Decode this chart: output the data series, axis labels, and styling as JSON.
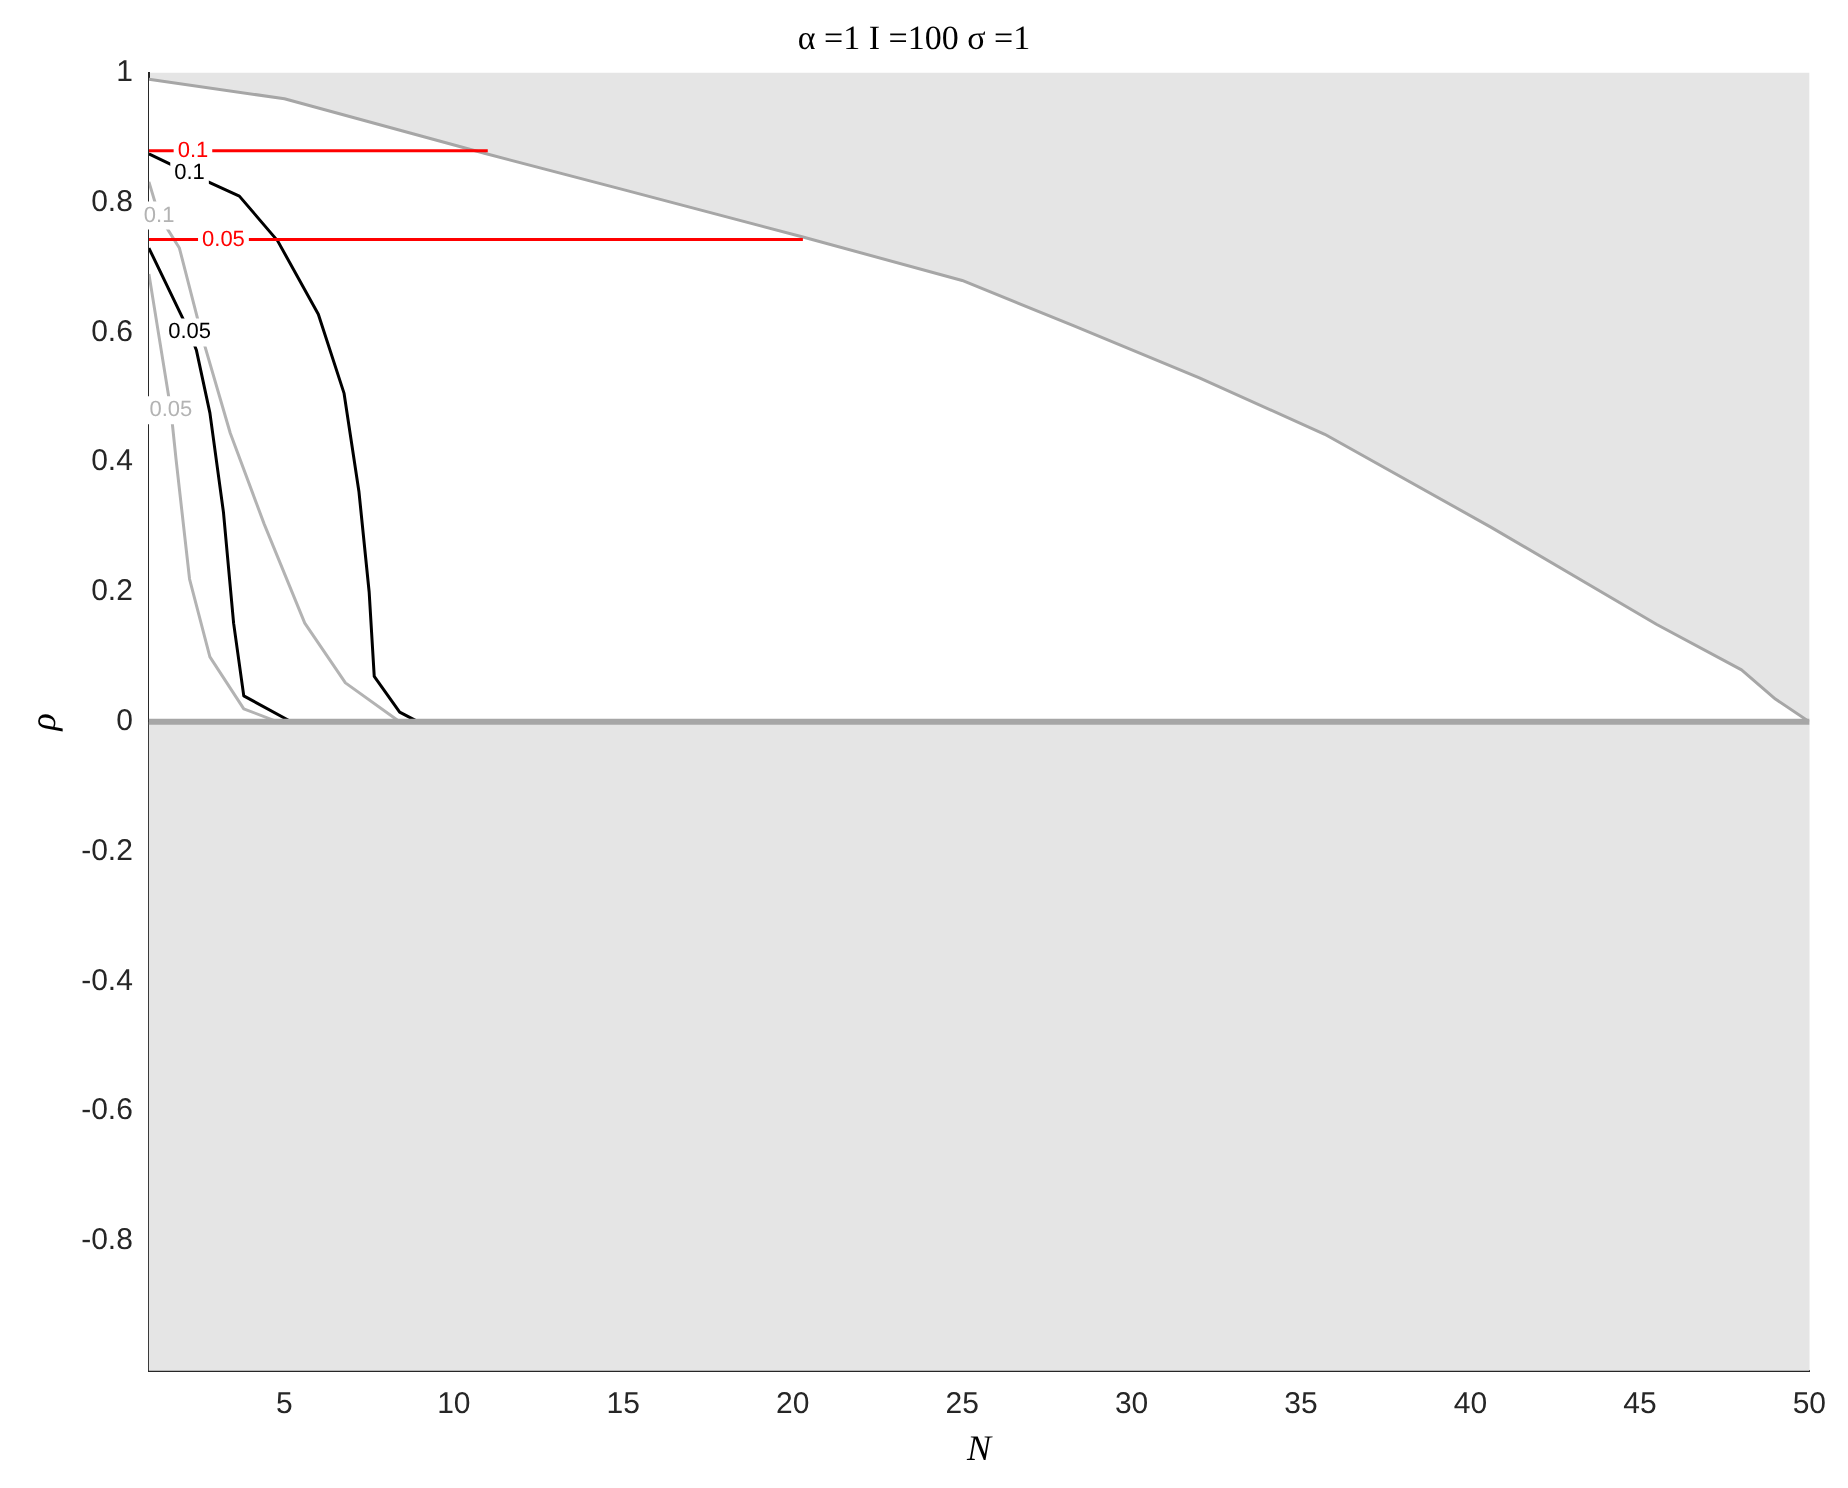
{
  "chart_data": {
    "type": "line",
    "title": "α =1 I =100 σ =1",
    "xlabel": "N",
    "ylabel": "ρ",
    "xlim": [
      1,
      50
    ],
    "xticks": [
      5,
      10,
      15,
      20,
      25,
      30,
      35,
      40,
      45,
      50
    ],
    "ylim": [
      -1,
      1
    ],
    "yticks": [
      -0.8,
      -0.6,
      -0.4,
      -0.2,
      0,
      0.2,
      0.4,
      0.6,
      0.8,
      1
    ],
    "grid": false,
    "legend": false,
    "marker": "none",
    "line_style": "solid",
    "series": [
      {
        "type": "area",
        "color": "#a6a6a6",
        "x": [
          1,
          5,
          10.9,
          15,
          20.3,
          25,
          28.3,
          32,
          35.7,
          40.6,
          45.5,
          48,
          49,
          50
        ],
        "values": [
          0.99,
          0.96,
          0.876,
          0.82,
          0.747,
          0.68,
          0.61,
          0.53,
          0.443,
          0.3,
          0.15,
          0.08,
          0.035,
          0.0
        ]
      },
      {
        "name": "0.1",
        "color": "#ff0000",
        "x": [
          1,
          2.3,
          11
        ],
        "values": [
          0.88,
          0.88,
          0.88
        ]
      },
      {
        "name": "0.05",
        "color": "#ff0000",
        "x": [
          1,
          3.2,
          20.3
        ],
        "values": [
          0.743,
          0.743,
          0.743
        ]
      },
      {
        "name": "0.1",
        "color": "#000000",
        "x": [
          1,
          2.2,
          3.67,
          4.8,
          6.0,
          6.76,
          7.2,
          7.5,
          7.65,
          8.4,
          8.95
        ],
        "values": [
          0.875,
          0.845,
          0.81,
          0.741,
          0.628,
          0.506,
          0.354,
          0.2,
          0.07,
          0.015,
          0
        ]
      },
      {
        "name": "0.05",
        "color": "#000000",
        "x": [
          1,
          2.2,
          2.4,
          2.8,
          3.2,
          3.5,
          3.8,
          5.2
        ],
        "values": [
          0.73,
          0.6,
          0.573,
          0.476,
          0.323,
          0.152,
          0.04,
          0
        ]
      },
      {
        "name": "0.1",
        "color": "#b3b3b3",
        "x": [
          1,
          1.3,
          1.9,
          2.6,
          3.4,
          4.4,
          5.6,
          6.8,
          8.4
        ],
        "values": [
          0.832,
          0.78,
          0.73,
          0.588,
          0.445,
          0.305,
          0.152,
          0.06,
          0
        ]
      },
      {
        "name": "0.05",
        "color": "#b3b3b3",
        "x": [
          1,
          1.65,
          1.8,
          2.2,
          2.8,
          3.8,
          4.8
        ],
        "values": [
          0.69,
          0.48,
          0.405,
          0.22,
          0.1,
          0.02,
          0
        ]
      }
    ],
    "ref_lines": [
      {
        "axis": "y",
        "value": 0,
        "color": "#a6a6a6"
      }
    ],
    "bands": [
      {
        "axis": "y",
        "from": -1,
        "to": 0,
        "color": "#e5e5e5"
      }
    ]
  }
}
